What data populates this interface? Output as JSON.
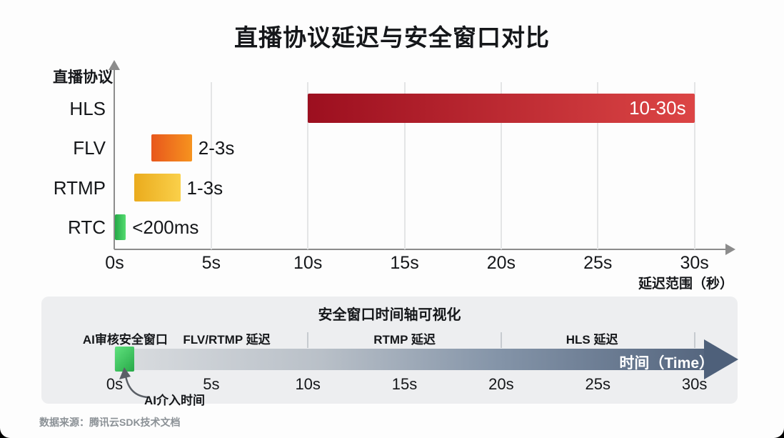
{
  "title": "直播协议延迟与安全窗口对比",
  "source": "数据来源：腾讯云SDK技术文档",
  "colors": {
    "axis": "#8c8c8c",
    "grid": "#e4e5e6",
    "panel_bg": "#edeef0",
    "divider": "#c7cbd0",
    "timeline_arrow_head": "#4e607a"
  },
  "chart_data": [
    {
      "type": "bar",
      "orientation": "horizontal_range",
      "title": "直播协议延迟与安全窗口对比",
      "ylabel": "直播协议",
      "xlabel": "延迟范围（秒）",
      "xlim_s": [
        0,
        32
      ],
      "xticks": [
        "0s",
        "5s",
        "10s",
        "15s",
        "20s",
        "25s",
        "30s"
      ],
      "xtick_values_s": [
        0,
        5,
        10,
        15,
        20,
        25,
        30
      ],
      "grid": true,
      "bars": [
        {
          "category": "HLS",
          "value_label": "10-30s",
          "range_s": [
            10,
            30
          ],
          "draw_range_s": [
            10,
            30
          ],
          "color_from": "#9c0f1f",
          "color_to": "#dc4545",
          "label_position": "inside-right",
          "label_color": "#ffffff"
        },
        {
          "category": "FLV",
          "value_label": "2-3s",
          "range_s": [
            2,
            3
          ],
          "draw_range_s": [
            1.9,
            4.0
          ],
          "color_from": "#e8571c",
          "color_to": "#f6931f",
          "label_position": "right",
          "label_color": "#15171a"
        },
        {
          "category": "RTMP",
          "value_label": "1-3s",
          "range_s": [
            1,
            3
          ],
          "draw_range_s": [
            1.0,
            3.4
          ],
          "color_from": "#eaab1d",
          "color_to": "#fad04a",
          "label_position": "right",
          "label_color": "#15171a"
        },
        {
          "category": "RTC",
          "value_label": "<200ms",
          "range_s": [
            0,
            0.2
          ],
          "draw_range_s": [
            0,
            0.58
          ],
          "color_from": "#24a847",
          "color_to": "#55dc70",
          "label_position": "right",
          "label_color": "#15171a"
        }
      ]
    },
    {
      "type": "timeline",
      "title": "安全窗口时间轴可视化",
      "axis_label": "时间（Time）",
      "xticks": [
        "0s",
        "5s",
        "10s",
        "15s",
        "20s",
        "25s",
        "30s"
      ],
      "xtick_values_s": [
        0,
        5,
        10,
        15,
        20,
        25,
        30
      ],
      "segment_labels": [
        {
          "text": "AI审核安全窗口",
          "center_s": 0.55
        },
        {
          "text": "FLV/RTMP 延迟",
          "center_s": 5.8
        },
        {
          "text": "RTMP 延迟",
          "center_s": 15.0
        },
        {
          "text": "HLS 延迟",
          "center_s": 24.7
        }
      ],
      "dividers_s": [
        10,
        20,
        30
      ],
      "marker": {
        "label": "AI介入时间",
        "range_s": [
          0,
          1
        ]
      },
      "bar_gradient": [
        "#dadde0",
        "#55667f"
      ],
      "marker_gradient": [
        "#5fe17d",
        "#27a948"
      ]
    }
  ]
}
